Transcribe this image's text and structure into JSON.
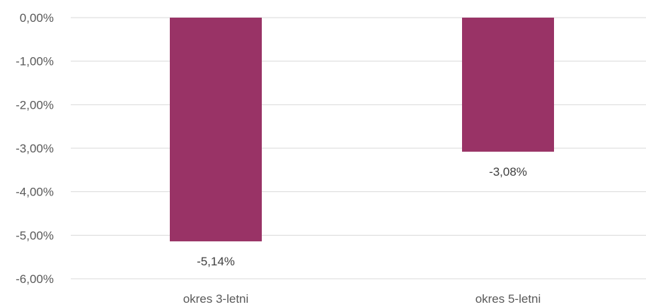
{
  "chart_data": {
    "type": "bar",
    "categories": [
      "okres 3-letni",
      "okres 5-letni"
    ],
    "values": [
      -5.14,
      -3.08
    ],
    "value_labels": [
      "-5,14%",
      "-3,08%"
    ],
    "ylim": [
      -6.0,
      0.0
    ],
    "y_ticks": [
      0,
      -1,
      -2,
      -3,
      -4,
      -5,
      -6
    ],
    "y_tick_labels": [
      "0,00%",
      "-1,00%",
      "-2,00%",
      "-3,00%",
      "-4,00%",
      "-5,00%",
      "-6,00%"
    ],
    "bar_color": "#993366",
    "grid_color": "#d9d9d9",
    "grid": true,
    "legend": "none"
  }
}
